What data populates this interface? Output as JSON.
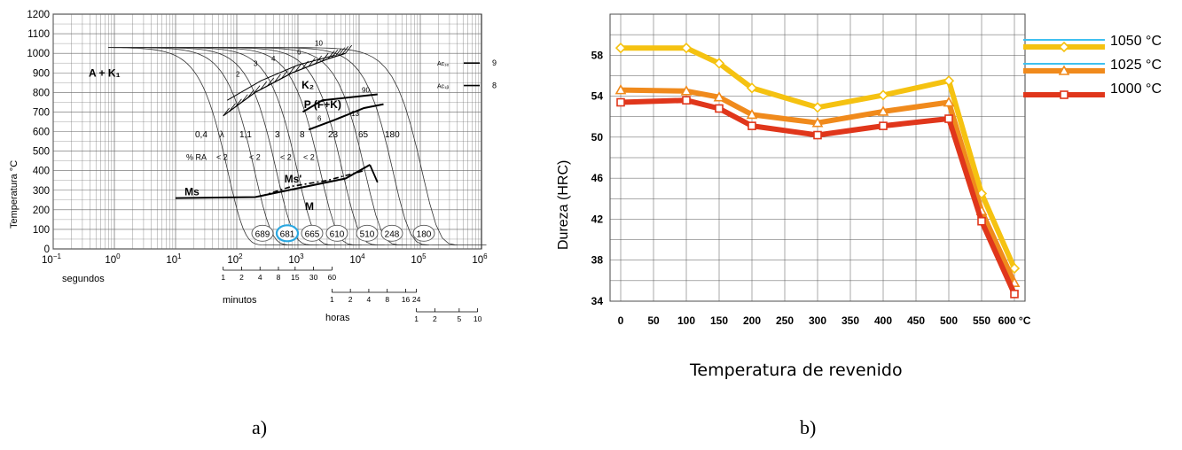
{
  "panel_labels": {
    "a": "a)",
    "b": "b)"
  },
  "chart_data": [
    {
      "type": "line",
      "id": "cct-diagram",
      "ylabel": "Temperatura °C",
      "y_ticks": [
        0,
        100,
        200,
        300,
        400,
        500,
        600,
        700,
        800,
        900,
        1000,
        1100,
        1200
      ],
      "ylim": [
        0,
        1200
      ],
      "x_scale": "log",
      "xlim": [
        0.1,
        1000000
      ],
      "x_ticks": [
        {
          "label": "10",
          "exp": "−1",
          "value": 0.1
        },
        {
          "label": "10",
          "exp": "0",
          "value": 1
        },
        {
          "label": "10",
          "exp": "1",
          "value": 10
        },
        {
          "label": "10",
          "exp": "2",
          "value": 100
        },
        {
          "label": "10",
          "exp": "3",
          "value": 1000
        },
        {
          "label": "10",
          "exp": "4",
          "value": 10000
        },
        {
          "label": "10",
          "exp": "5",
          "value": 100000
        },
        {
          "label": "10",
          "exp": "6",
          "value": 1000000
        }
      ],
      "time_scales": [
        {
          "label": "segundos",
          "ticks": []
        },
        {
          "label": "minutos",
          "ticks": [
            {
              "t": "1",
              "sec": 60
            },
            {
              "t": "2",
              "sec": 120
            },
            {
              "t": "4",
              "sec": 240
            },
            {
              "t": "8",
              "sec": 480
            },
            {
              "t": "15",
              "sec": 900
            },
            {
              "t": "30",
              "sec": 1800
            },
            {
              "t": "60",
              "sec": 3600
            }
          ]
        },
        {
          "label": "horas",
          "ticks": [
            {
              "t": "1",
              "sec": 3600
            },
            {
              "t": "2",
              "sec": 7200
            },
            {
              "t": "4",
              "sec": 14400
            },
            {
              "t": "8",
              "sec": 28800
            },
            {
              "t": "16",
              "sec": 57600
            },
            {
              "t": "24",
              "sec": 86400
            }
          ]
        },
        {
          "label": "",
          "ticks": [
            {
              "t": "1",
              "sec": 86400
            },
            {
              "t": "2",
              "sec": 172800
            },
            {
              "t": "5",
              "sec": 432000
            },
            {
              "t": "10",
              "sec": 864000
            }
          ]
        }
      ],
      "regions": [
        "A + K₁",
        "K₂",
        "P (F+K)",
        "Ms",
        "Ms'",
        "M"
      ],
      "ac_labels": [
        {
          "label": "Ac₁ₑ",
          "value": "950",
          "temp": 950
        },
        {
          "label": "Ac₁ᵦ",
          "value": "835",
          "temp": 835
        }
      ],
      "lambda_label": "λ",
      "lambda_values": [
        "0,4",
        "1,1",
        "3",
        "8",
        "23",
        "65",
        "180"
      ],
      "ra_label": "% RA",
      "ra_values": [
        "< 2",
        "< 2",
        "< 2",
        "< 2"
      ],
      "curve_labels": [
        "2",
        "3",
        "4",
        "6",
        "10",
        "90",
        "13",
        "6"
      ],
      "hardness_values": [
        "689",
        "681",
        "665",
        "610",
        "510",
        "248",
        "180"
      ],
      "highlighted_hardness": "681",
      "cooling_start": {
        "time": 0.8,
        "temp": 1030
      },
      "cooling_curves": [
        {
          "t50": 40
        },
        {
          "t50": 110
        },
        {
          "t50": 250
        },
        {
          "t50": 550
        },
        {
          "t50": 1300
        },
        {
          "t50": 3000
        },
        {
          "t50": 7000
        },
        {
          "t50": 20000
        },
        {
          "t50": 60000
        }
      ],
      "ms_line": [
        [
          10,
          260
        ],
        [
          200,
          265
        ],
        [
          1000,
          310
        ],
        [
          6000,
          360
        ],
        [
          15000,
          430
        ]
      ],
      "ms_prime_line": [
        [
          250,
          270
        ],
        [
          800,
          320
        ],
        [
          3000,
          350
        ],
        [
          12000,
          400
        ]
      ],
      "pearlite_nose": [
        [
          1200,
          700
        ],
        [
          2500,
          760
        ],
        [
          10000,
          780
        ],
        [
          20000,
          790
        ]
      ],
      "pearlite_finish": [
        [
          1500,
          610
        ],
        [
          4000,
          660
        ],
        [
          12000,
          720
        ],
        [
          25000,
          740
        ]
      ],
      "k2_band": [
        [
          60,
          680
        ],
        [
          200,
          800
        ],
        [
          800,
          900
        ],
        [
          3000,
          970
        ],
        [
          6000,
          1000
        ]
      ],
      "k2_finish": [
        [
          70,
          760
        ],
        [
          250,
          860
        ],
        [
          1000,
          940
        ],
        [
          4000,
          990
        ]
      ]
    },
    {
      "type": "line",
      "id": "hardness-tempering",
      "xlabel": "Temperatura de revenido",
      "ylabel": "Dureza (HRC)",
      "xlim": [
        0,
        600
      ],
      "ylim": [
        34,
        62
      ],
      "y_ticks": [
        34,
        38,
        42,
        46,
        50,
        54,
        58
      ],
      "x_ticks": [
        "0",
        "50",
        "100",
        "150",
        "200",
        "250",
        "300",
        "350",
        "400",
        "450",
        "500",
        "550",
        "600 °C"
      ],
      "x": [
        0,
        100,
        150,
        200,
        300,
        400,
        500,
        550,
        600
      ],
      "series": [
        {
          "name": "1050 °C",
          "color": "#f5c211",
          "marker": "diamond",
          "values": [
            58.7,
            58.7,
            57.2,
            54.8,
            52.9,
            54.1,
            55.5,
            44.5,
            37.2
          ]
        },
        {
          "name": "1025 °C",
          "color": "#f08a1c",
          "marker": "triangle",
          "values": [
            54.6,
            54.5,
            53.9,
            52.2,
            51.4,
            52.5,
            53.4,
            42.8,
            35.8
          ]
        },
        {
          "name": "1000 °C",
          "color": "#e0361b",
          "marker": "square",
          "values": [
            53.4,
            53.6,
            52.8,
            51.1,
            50.2,
            51.1,
            51.8,
            41.8,
            34.7
          ]
        }
      ],
      "legend_position": "right",
      "legend_line_color": "#3ec0f0"
    }
  ]
}
